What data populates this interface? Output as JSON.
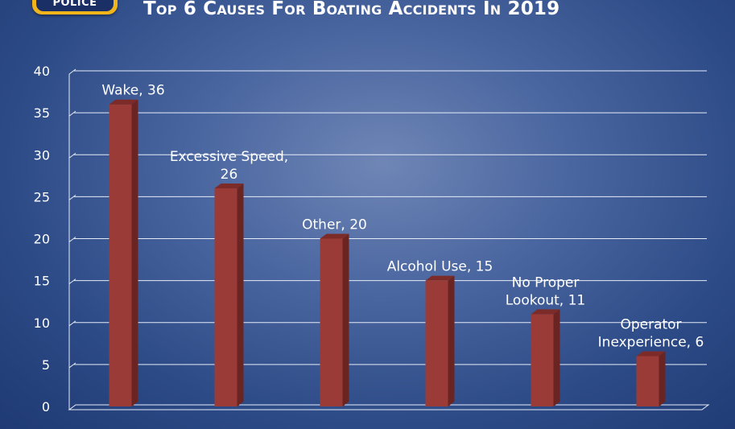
{
  "badge": {
    "label": "POLICE"
  },
  "chart_data": {
    "type": "bar",
    "title": "Top 6 Causes For Boating Accidents In 2019",
    "xlabel": "",
    "ylabel": "",
    "ylim": [
      0,
      40
    ],
    "yticks": [
      0,
      5,
      10,
      15,
      20,
      25,
      30,
      35,
      40
    ],
    "grid": true,
    "legend": "none",
    "bar_color": "#9b3b38",
    "categories": [
      "Wake",
      "Excessive Speed",
      "Other",
      "Alcohol Use",
      "No Proper Lookout",
      "Operator Inexperience"
    ],
    "values": [
      36,
      26,
      20,
      15,
      11,
      6
    ],
    "data_labels": [
      [
        "Wake, 36"
      ],
      [
        "Excessive Speed,",
        "26"
      ],
      [
        "Other, 20"
      ],
      [
        "Alcohol Use, 15"
      ],
      [
        "No Proper",
        "Lookout, 11"
      ],
      [
        "Operator",
        "Inexperience, 6"
      ]
    ]
  }
}
